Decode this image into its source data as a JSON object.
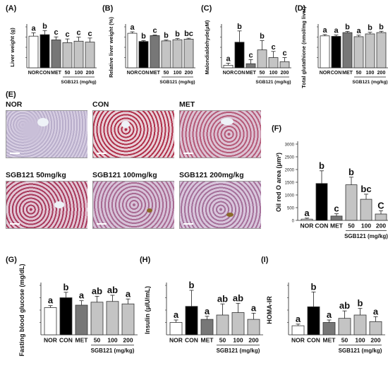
{
  "panels": {
    "A": {
      "label": "(A)",
      "ylabel": "Liver weight (g)",
      "xgroup": "SGB121 (mg/kg)"
    },
    "B": {
      "label": "(B)",
      "ylabel": "Relative liver weight (%)",
      "xgroup": "SGB121 (mg/kg)"
    },
    "C": {
      "label": "(C)",
      "ylabel": "Malondialdehyde(μM)",
      "xgroup": "SGB121 (mg/kg)"
    },
    "D": {
      "label": "(D)",
      "ylabel": "Total glutathione (nmol/mg liver)",
      "xgroup": "SGB121 (mg/kg)"
    },
    "E": {
      "label": "(E)",
      "captions": [
        "NOR",
        "CON",
        "MET",
        "SGB121 50mg/kg",
        "SGB121 100mg/kg",
        "SGB121 200mg/kg"
      ]
    },
    "F": {
      "label": "(F)",
      "ylabel": "Oil red O area (μm²)",
      "xgroup": "SGB121 (mg/kg)"
    },
    "G": {
      "label": "(G)",
      "ylabel": "Fasting blood glucose (mg/dL)",
      "xgroup": "SGB121 (mg/kg)"
    },
    "H": {
      "label": "(H)",
      "ylabel": "Insulin (μIU/mL)",
      "xgroup": "SGB121 (mg/kg)"
    },
    "I": {
      "label": "(I)",
      "ylabel": "HOMA-IR",
      "xgroup": "SGB121 (mg/kg)"
    }
  },
  "colors": {
    "NOR": "#ffffff",
    "CON": "#000000",
    "MET": "#777777",
    "SGB": "#c4c4c4",
    "outline": "#333333"
  },
  "chart_data": [
    {
      "id": "A",
      "type": "bar",
      "categories": [
        "NOR",
        "CON",
        "MET",
        "50",
        "100",
        "200"
      ],
      "values": [
        1.7,
        1.78,
        1.5,
        1.35,
        1.43,
        1.38
      ],
      "errors": [
        0.18,
        0.22,
        0.16,
        0.2,
        0.22,
        0.22
      ],
      "letters": [
        "a",
        "b",
        "c",
        "c",
        "c",
        "c"
      ],
      "ylim": [
        0,
        2.2
      ],
      "ticks": [],
      "ylabel": "Liver weight (g)",
      "xlabel": "SGB121 (mg/kg)"
    },
    {
      "id": "B",
      "type": "bar",
      "categories": [
        "NOR",
        "CON",
        "MET",
        "50",
        "100",
        "200"
      ],
      "values": [
        5.9,
        4.5,
        5.5,
        4.6,
        4.8,
        4.9
      ],
      "errors": [
        0.25,
        0.15,
        0.1,
        0.15,
        0.2,
        0.15
      ],
      "letters": [
        "a",
        "b",
        "c",
        "b",
        "b",
        "bc"
      ],
      "ylim": [
        0,
        7
      ],
      "ticks": [],
      "ylabel": "Relative liver weight (%)",
      "xlabel": "SGB121 (mg/kg)"
    },
    {
      "id": "C",
      "type": "bar",
      "categories": [
        "NOR",
        "CON",
        "MET",
        "50",
        "100",
        "200"
      ],
      "values": [
        5,
        50,
        8,
        35,
        20,
        12
      ],
      "errors": [
        4,
        22,
        8,
        18,
        12,
        8
      ],
      "letters": [
        "a",
        "b",
        "c",
        "b",
        "c",
        "c"
      ],
      "ylim": [
        0,
        80
      ],
      "ticks": [],
      "ylabel": "Malondialdehyde(μM)",
      "xlabel": "SGB121 (mg/kg)"
    },
    {
      "id": "D",
      "type": "bar",
      "categories": [
        "NOR",
        "CON",
        "MET",
        "50",
        "100",
        "200"
      ],
      "values": [
        19.5,
        19.2,
        21.5,
        19.0,
        20.7,
        21.5
      ],
      "errors": [
        0.8,
        0.8,
        0.7,
        0.9,
        1.0,
        0.8
      ],
      "letters": [
        "a",
        "a",
        "b",
        "a",
        "b",
        "b"
      ],
      "ylim": [
        0,
        25
      ],
      "ticks": [],
      "ylabel": "Total glutathione (nmol/mg liver)",
      "xlabel": "SGB121 (mg/kg)"
    },
    {
      "id": "F",
      "type": "bar",
      "categories": [
        "NOR",
        "CON",
        "MET",
        "50",
        "100",
        "200"
      ],
      "values": [
        50,
        1450,
        170,
        1400,
        830,
        250
      ],
      "errors": [
        40,
        500,
        90,
        300,
        200,
        130
      ],
      "letters": [
        "a",
        "b",
        "c",
        "b",
        "bc",
        "C"
      ],
      "ylim": [
        0,
        3000
      ],
      "ticks": [
        0,
        500,
        1000,
        1500,
        2000,
        2500,
        3000
      ],
      "ylabel": "Oil red O area (μm²)",
      "xlabel": "SGB121 (mg/kg)"
    },
    {
      "id": "G",
      "type": "bar",
      "categories": [
        "NOR",
        "CON",
        "MET",
        "50",
        "100",
        "200"
      ],
      "values": [
        110,
        150,
        120,
        132,
        135,
        125
      ],
      "errors": [
        8,
        22,
        18,
        24,
        25,
        20
      ],
      "letters": [
        "a",
        "b",
        "a",
        "ab",
        "ab",
        "a"
      ],
      "ylim": [
        0,
        200
      ],
      "ticks": [],
      "ylabel": "Fasting blood glucose (mg/dL)",
      "xlabel": "SGB121 (mg/kg)"
    },
    {
      "id": "H",
      "type": "bar",
      "categories": [
        "NOR",
        "CON",
        "MET",
        "50",
        "100",
        "200"
      ],
      "values": [
        2.0,
        4.6,
        2.5,
        3.2,
        3.6,
        2.5
      ],
      "errors": [
        0.4,
        2.6,
        0.5,
        1.8,
        1.5,
        1.0
      ],
      "letters": [
        "a",
        "b",
        "a",
        "ab",
        "ab",
        "a"
      ],
      "ylim": [
        0,
        8
      ],
      "ticks": [],
      "ylabel": "Insulin (μIU/mL)",
      "xlabel": "SGB121 (mg/kg)"
    },
    {
      "id": "I",
      "type": "bar",
      "categories": [
        "NOR",
        "CON",
        "MET",
        "50",
        "100",
        "200"
      ],
      "values": [
        0.55,
        1.7,
        0.75,
        1.0,
        1.2,
        0.8
      ],
      "errors": [
        0.1,
        0.9,
        0.15,
        0.45,
        0.4,
        0.3
      ],
      "letters": [
        "a",
        "b",
        "a",
        "ab",
        "b",
        "a"
      ],
      "ylim": [
        0,
        3
      ],
      "ticks": [],
      "ylabel": "HOMA-IR",
      "xlabel": "SGB121 (mg/kg)"
    }
  ]
}
